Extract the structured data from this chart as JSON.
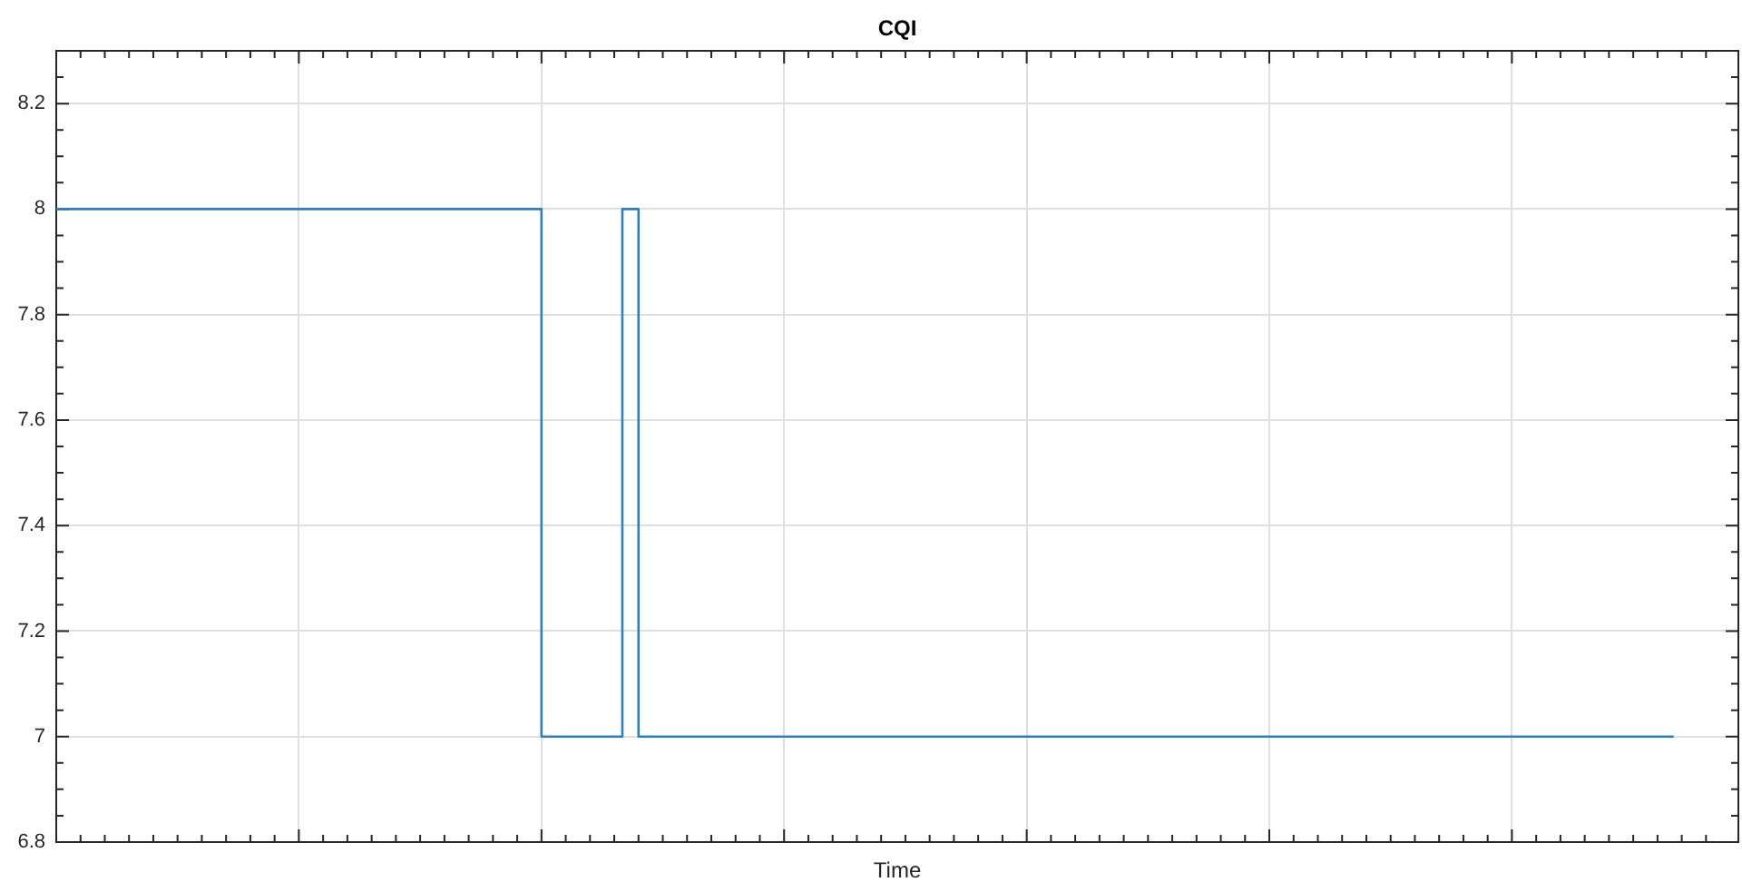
{
  "chart_data": {
    "type": "step",
    "title": "CQI",
    "xlabel": "Time",
    "categories": [
      null,
      null,
      null,
      null,
      null,
      null,
      null,
      null,
      null,
      null,
      null,
      null,
      null,
      null,
      null,
      null,
      null,
      null,
      null,
      null,
      null,
      null,
      null,
      null,
      null,
      null,
      null,
      null,
      null,
      null,
      null,
      null,
      null,
      null,
      null,
      null,
      null,
      null,
      null,
      null,
      null,
      null,
      null,
      null,
      null,
      null,
      null,
      null,
      null,
      null,
      null,
      null,
      null,
      null,
      null,
      null,
      null,
      null,
      null,
      null,
      null,
      null,
      null,
      null,
      null,
      null,
      null,
      null,
      null,
      null,
      null,
      null,
      null,
      null,
      null,
      null,
      null,
      null,
      null,
      null,
      null,
      null,
      null,
      null,
      null,
      null,
      null,
      null,
      null,
      null,
      null,
      null,
      null,
      null,
      null,
      null,
      null,
      null,
      null,
      null,
      null,
      null,
      null,
      null,
      null
    ],
    "series": [
      {
        "color": "#2a7fc6",
        "values": [
          8,
          8,
          8,
          8,
          8,
          8,
          8,
          8,
          8,
          8,
          8,
          8,
          8,
          8,
          8,
          8,
          8,
          8,
          8,
          8,
          8,
          8,
          8,
          8,
          8,
          8,
          8,
          8,
          8,
          8,
          7,
          7,
          7,
          7,
          7,
          8,
          7,
          7,
          7,
          7,
          7,
          7,
          7,
          7,
          7,
          7,
          7,
          7,
          7,
          7,
          7,
          7,
          7,
          7,
          7,
          7,
          7,
          7,
          7,
          7,
          7,
          7,
          7,
          7,
          7,
          7,
          7,
          7,
          7,
          7,
          7,
          7,
          7,
          7,
          7,
          7,
          7,
          7,
          7,
          7,
          7,
          7,
          7,
          7,
          7,
          7,
          7,
          7,
          7,
          7,
          7,
          7,
          7,
          7,
          7,
          7,
          7,
          7,
          7,
          7,
          7,
          null,
          null,
          null,
          null
        ]
      }
    ],
    "ylim": [
      6.8,
      8.3
    ],
    "yticks": [
      6.8,
      7,
      7.2,
      7.4,
      7.6,
      7.8,
      8,
      8.2
    ],
    "grid": true,
    "tick_labels": "y",
    "legend": false,
    "marker": "none",
    "line_style": "solid"
  }
}
